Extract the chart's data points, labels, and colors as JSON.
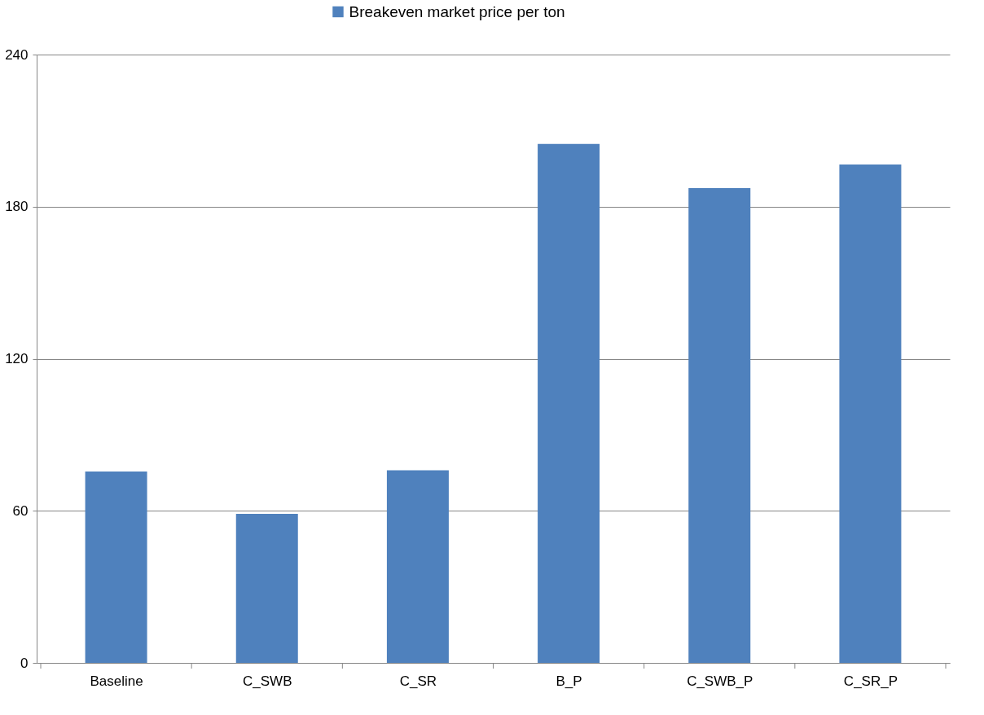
{
  "chart_data": {
    "type": "bar",
    "categories": [
      "Baseline",
      "C_SWB",
      "C_SR",
      "B_P",
      "C_SWB_P",
      "C_SR_P"
    ],
    "series": [
      {
        "name": "Breakeven market price per ton",
        "color": "#4f81bd",
        "values": [
          75.5,
          58.8,
          76,
          204.7,
          187.3,
          196.6
        ]
      }
    ],
    "ylim": [
      0,
      240
    ],
    "yticks": [
      0,
      60,
      120,
      180,
      240
    ],
    "grid": "y",
    "legend": "top"
  }
}
